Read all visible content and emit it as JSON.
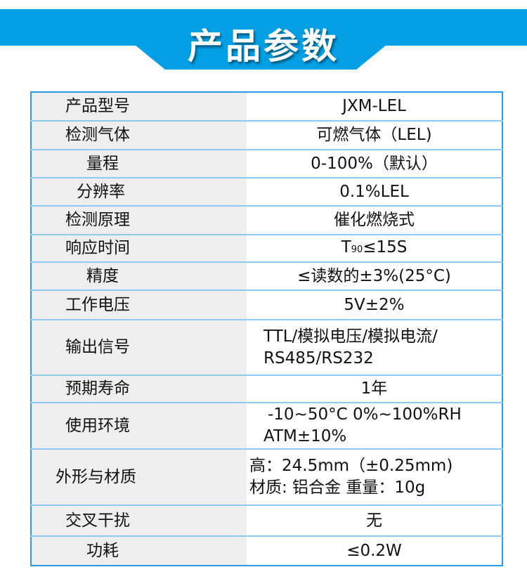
{
  "header": {
    "title": "产品参数",
    "color": "#049fe5"
  },
  "rows": [
    {
      "label": "产品型号",
      "value": [
        "JXM-LEL"
      ]
    },
    {
      "label": "检测气体",
      "value": [
        "可燃气体（LEL)"
      ]
    },
    {
      "label": "量程",
      "value": [
        "0-100%（默认）"
      ]
    },
    {
      "label": "分辨率",
      "value": [
        "0.1%LEL"
      ]
    },
    {
      "label": "检测原理",
      "value": [
        "催化燃烧式"
      ]
    },
    {
      "label": "响应时间",
      "value": [
        "T",
        "90",
        "≤15S"
      ]
    },
    {
      "label": "精度",
      "value": [
        "≤读数的±3%(25°C)"
      ]
    },
    {
      "label": "工作电压",
      "value": [
        "5V±2%"
      ]
    },
    {
      "label": "输出信号",
      "value": [
        "TTL/模拟电压/模拟电流/",
        "RS485/RS232"
      ]
    },
    {
      "label": "预期寿命",
      "value": [
        "1年"
      ]
    },
    {
      "label": "使用环境",
      "value": [
        "-10~50°C 0%~100%RH",
        "ATM±10%"
      ]
    },
    {
      "label": "外形与材质",
      "value": [
        "高：24.5mm（±0.25mm)",
        "材质: 铝合金  重量：10g"
      ]
    },
    {
      "label": "交叉干扰",
      "value": [
        "无"
      ]
    },
    {
      "label": "功耗",
      "value": [
        "≤0.2W"
      ]
    }
  ]
}
